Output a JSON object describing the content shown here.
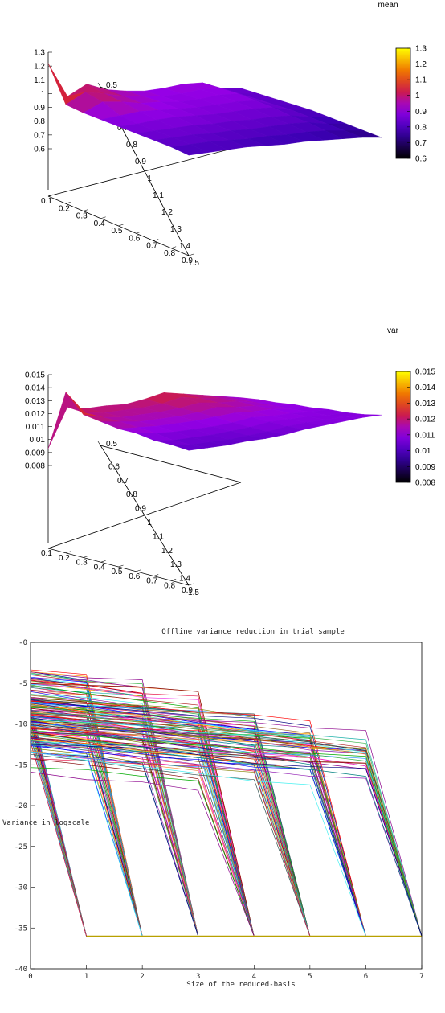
{
  "chart_data": [
    {
      "type": "surface",
      "title": "mean",
      "x_ticks": [
        "0.1",
        "0.2",
        "0.3",
        "0.4",
        "0.5",
        "0.6",
        "0.7",
        "0.8",
        "0.9"
      ],
      "y_ticks": [
        "1.5",
        "1.4",
        "1.3",
        "1.2",
        "1.1",
        "1",
        "0.9",
        "0.8",
        "0.7",
        "0.6",
        "0.5"
      ],
      "z_ticks": [
        "1.3",
        "1.2",
        "1.1",
        "1",
        "0.9",
        "0.8",
        "0.7",
        "0.6"
      ],
      "colorbar_ticks": [
        "1.3",
        "1.2",
        "1.1",
        "1",
        "0.9",
        "0.8",
        "0.7",
        "0.6"
      ],
      "zlim": [
        0.6,
        1.3
      ],
      "values": [
        [
          1.22,
          0.95,
          0.92,
          0.9,
          0.88,
          0.86,
          0.84,
          0.82,
          0.79
        ],
        [
          0.96,
          1.02,
          0.98,
          0.91,
          0.88,
          0.86,
          0.84,
          0.82,
          0.79
        ],
        [
          1.03,
          0.99,
          0.96,
          0.92,
          0.89,
          0.86,
          0.84,
          0.82,
          0.79
        ],
        [
          0.97,
          0.95,
          0.93,
          0.91,
          0.89,
          0.86,
          0.83,
          0.81,
          0.79
        ],
        [
          0.94,
          0.93,
          0.92,
          0.9,
          0.88,
          0.85,
          0.83,
          0.8,
          0.78
        ],
        [
          0.92,
          0.91,
          0.9,
          0.89,
          0.87,
          0.85,
          0.82,
          0.8,
          0.77
        ],
        [
          0.92,
          0.91,
          0.9,
          0.89,
          0.87,
          0.84,
          0.82,
          0.79,
          0.77
        ],
        [
          0.93,
          0.92,
          0.91,
          0.89,
          0.87,
          0.84,
          0.82,
          0.79,
          0.76
        ],
        [
          0.92,
          0.91,
          0.9,
          0.88,
          0.86,
          0.83,
          0.81,
          0.78,
          0.75
        ],
        [
          0.86,
          0.85,
          0.84,
          0.83,
          0.82,
          0.8,
          0.78,
          0.76,
          0.74
        ],
        [
          0.84,
          0.83,
          0.82,
          0.81,
          0.8,
          0.78,
          0.76,
          0.74,
          0.72
        ]
      ]
    },
    {
      "type": "surface",
      "title": "var",
      "x_ticks": [
        "0.1",
        "0.2",
        "0.3",
        "0.4",
        "0.5",
        "0.6",
        "0.7",
        "0.8",
        "0.9"
      ],
      "y_ticks": [
        "1.5",
        "1.4",
        "1.3",
        "1.2",
        "1.1",
        "1",
        "0.9",
        "0.8",
        "0.7",
        "0.6",
        "0.5"
      ],
      "z_ticks": [
        "0.015",
        "0.014",
        "0.013",
        "0.012",
        "0.011",
        "0.01",
        "0.009",
        "0.008"
      ],
      "colorbar_ticks": [
        "0.015",
        "0.014",
        "0.013",
        "0.012",
        "0.011",
        "0.01",
        "0.009",
        "0.008"
      ],
      "zlim": [
        0.008,
        0.015
      ],
      "values": [
        [
          0.0093,
          0.0138,
          0.0122,
          0.0118,
          0.0114,
          0.0112,
          0.0108,
          0.0106,
          0.0103
        ],
        [
          0.0123,
          0.012,
          0.0118,
          0.0116,
          0.0113,
          0.011,
          0.0106,
          0.0104,
          0.0103
        ],
        [
          0.012,
          0.0118,
          0.0116,
          0.0114,
          0.0112,
          0.0109,
          0.0106,
          0.0104,
          0.0103
        ],
        [
          0.012,
          0.0118,
          0.0116,
          0.0114,
          0.0112,
          0.0109,
          0.0106,
          0.0104,
          0.0104
        ],
        [
          0.0119,
          0.0118,
          0.0116,
          0.0114,
          0.0112,
          0.0109,
          0.0107,
          0.0105,
          0.0104
        ],
        [
          0.0121,
          0.0119,
          0.0117,
          0.0115,
          0.0113,
          0.011,
          0.0108,
          0.0106,
          0.0105
        ],
        [
          0.0124,
          0.0122,
          0.0119,
          0.0117,
          0.0114,
          0.0112,
          0.011,
          0.0108,
          0.0107
        ],
        [
          0.0121,
          0.0119,
          0.0117,
          0.0115,
          0.0113,
          0.0111,
          0.011,
          0.0109,
          0.0108
        ],
        [
          0.0118,
          0.0117,
          0.0116,
          0.0114,
          0.0113,
          0.0111,
          0.011,
          0.0109,
          0.0109
        ],
        [
          0.0115,
          0.0114,
          0.0113,
          0.0112,
          0.0111,
          0.011,
          0.0109,
          0.0109,
          0.011
        ],
        [
          0.0112,
          0.0112,
          0.0111,
          0.0111,
          0.011,
          0.011,
          0.0109,
          0.0109,
          0.011
        ]
      ]
    },
    {
      "type": "line",
      "title": "Offline variance reduction in trial sample",
      "xlabel": "Size of the reduced-basis",
      "ylabel": "Variance in logscale",
      "xlim": [
        0,
        7
      ],
      "ylim": [
        -40,
        0
      ],
      "x_ticks": [
        "0",
        "1",
        "2",
        "3",
        "4",
        "5",
        "6",
        "7"
      ],
      "y_ticks": [
        "-0",
        "-5",
        "-10",
        "-15",
        "-20",
        "-25",
        "-30",
        "-35",
        "-40"
      ],
      "floor_value": -36,
      "curve_families": [
        {
          "drop_at": 1,
          "start_range": [
            -7.5,
            -12
          ]
        },
        {
          "drop_at": 2,
          "start_range": [
            -3.2,
            -13
          ]
        },
        {
          "drop_at": 3,
          "start_range": [
            -3.5,
            -13.5
          ]
        },
        {
          "drop_at": 4,
          "start_range": [
            -4.5,
            -15.5
          ]
        },
        {
          "drop_at": 5,
          "start_range": [
            -6.5,
            -14
          ]
        },
        {
          "drop_at": 6,
          "start_range": [
            -7,
            -13
          ]
        },
        {
          "drop_at": 7,
          "start_range": [
            -8.5,
            -12
          ]
        }
      ]
    }
  ]
}
